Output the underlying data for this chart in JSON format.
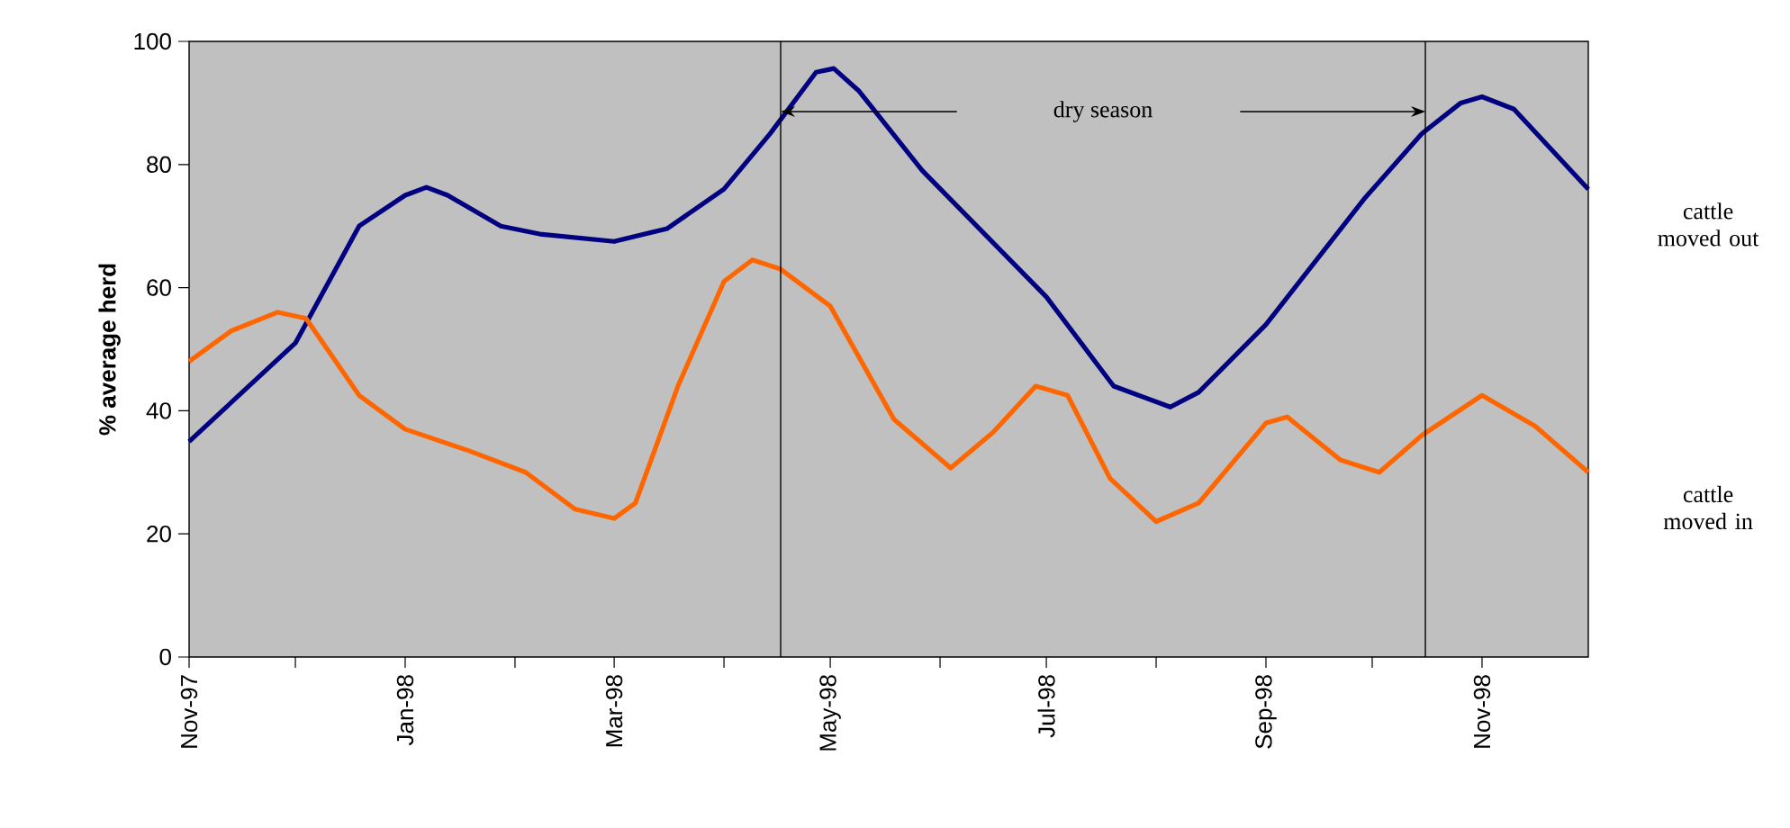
{
  "chart_data": {
    "type": "line",
    "ylabel": "% average herd",
    "series": [
      {
        "name": "cattle moved out",
        "color": "#000080",
        "x": [
          "1997-11-01",
          "1997-12-01",
          "1997-12-19",
          "1998-01-01",
          "1998-01-07",
          "1998-01-13",
          "1998-01-28",
          "1998-02-08",
          "1998-03-01",
          "1998-03-16",
          "1998-04-01",
          "1998-04-14",
          "1998-04-27",
          "1998-05-02",
          "1998-05-09",
          "1998-05-27",
          "1998-07-01",
          "1998-07-20",
          "1998-08-05",
          "1998-08-13",
          "1998-09-01",
          "1998-09-29",
          "1998-10-15",
          "1998-10-26",
          "1998-11-01",
          "1998-11-10",
          "1998-12-01"
        ],
        "values": [
          35,
          51,
          70,
          75,
          76.3,
          75,
          70,
          68.7,
          67.5,
          69.6,
          76,
          85,
          95,
          95.6,
          92,
          79,
          58.5,
          44,
          40.6,
          43,
          54,
          74.6,
          85,
          90,
          91,
          89,
          76
        ]
      },
      {
        "name": "cattle moved in",
        "color": "#ff6600",
        "x": [
          "1997-11-01",
          "1997-11-13",
          "1997-11-26",
          "1997-12-04",
          "1997-12-19",
          "1998-01-01",
          "1998-01-19",
          "1998-02-04",
          "1998-02-18",
          "1998-03-01",
          "1998-03-07",
          "1998-03-19",
          "1998-04-01",
          "1998-04-09",
          "1998-04-17",
          "1998-05-01",
          "1998-05-19",
          "1998-06-04",
          "1998-06-16",
          "1998-06-28",
          "1998-07-07",
          "1998-07-19",
          "1998-08-01",
          "1998-08-13",
          "1998-09-01",
          "1998-09-07",
          "1998-09-22",
          "1998-10-03",
          "1998-10-15",
          "1998-11-01",
          "1998-11-16",
          "1998-12-01"
        ],
        "values": [
          48,
          53,
          56,
          55,
          42.5,
          37,
          33.5,
          30,
          24,
          22.5,
          25,
          44,
          61,
          64.5,
          63,
          57,
          38.6,
          30.7,
          36.5,
          44,
          42.5,
          29,
          22,
          25,
          38,
          39,
          32,
          30,
          36,
          42.5,
          37.5,
          30
        ]
      }
    ],
    "xlim": [
      "1997-11-01",
      "1998-12-01"
    ],
    "xticks": [
      {
        "value": "1997-11-01",
        "label": "Nov-97"
      },
      {
        "value": "1997-12-01",
        "label": null
      },
      {
        "value": "1998-01-01",
        "label": "Jan-98"
      },
      {
        "value": "1998-02-01",
        "label": null
      },
      {
        "value": "1998-03-01",
        "label": "Mar-98"
      },
      {
        "value": "1998-04-01",
        "label": null
      },
      {
        "value": "1998-05-01",
        "label": "May-98"
      },
      {
        "value": "1998-06-01",
        "label": null
      },
      {
        "value": "1998-07-01",
        "label": "Jul-98"
      },
      {
        "value": "1998-08-01",
        "label": null
      },
      {
        "value": "1998-09-01",
        "label": "Sep-98"
      },
      {
        "value": "1998-10-01",
        "label": null
      },
      {
        "value": "1998-11-01",
        "label": "Nov-98"
      }
    ],
    "ylim": [
      0,
      100
    ],
    "yticks": [
      0,
      20,
      40,
      60,
      80,
      100
    ],
    "ref_lines": [
      {
        "axis": "x",
        "value": "1998-04-17",
        "color": "#000000"
      },
      {
        "axis": "x",
        "value": "1998-10-16",
        "color": "#000000"
      }
    ],
    "annotations": [
      "dry season"
    ],
    "grid": false,
    "legend": false,
    "marker": "none",
    "line_style": "solid"
  }
}
